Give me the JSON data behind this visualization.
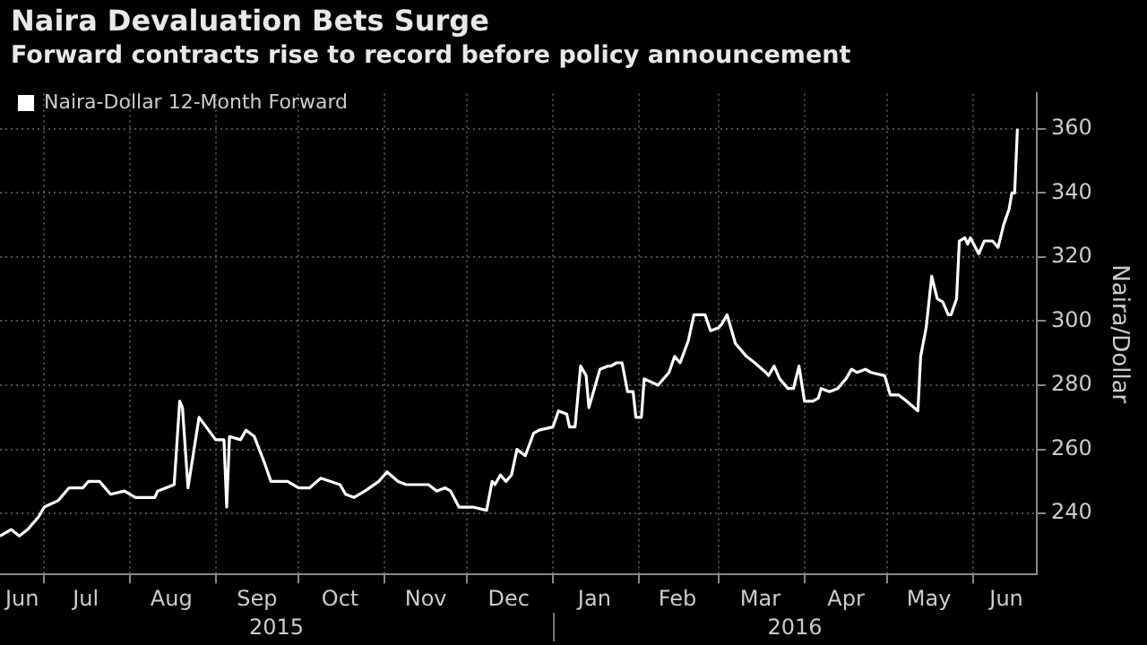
{
  "chart_data": {
    "type": "line",
    "title": "Naira Devaluation Bets Surge",
    "subtitle": "Forward contracts rise to record before policy announcement",
    "ylabel": "Naira/Dollar",
    "annotations": [
      "2015",
      "2016"
    ],
    "x": [
      "2015-06-15",
      "2015-06-19",
      "2015-06-22",
      "2015-06-25",
      "2015-06-29",
      "2015-07-01",
      "2015-07-06",
      "2015-07-10",
      "2015-07-15",
      "2015-07-17",
      "2015-07-21",
      "2015-07-25",
      "2015-07-30",
      "2015-08-03",
      "2015-08-10",
      "2015-08-11",
      "2015-08-17",
      "2015-08-19",
      "2015-08-20",
      "2015-08-22",
      "2015-08-26",
      "2015-09-01",
      "2015-09-04",
      "2015-09-05",
      "2015-09-06",
      "2015-09-10",
      "2015-09-12",
      "2015-09-15",
      "2015-09-19",
      "2015-09-21",
      "2015-09-27",
      "2015-10-01",
      "2015-10-05",
      "2015-10-09",
      "2015-10-16",
      "2015-10-18",
      "2015-10-21",
      "2015-10-25",
      "2015-10-30",
      "2015-11-02",
      "2015-11-06",
      "2015-11-09",
      "2015-11-17",
      "2015-11-20",
      "2015-11-23",
      "2015-11-25",
      "2015-11-28",
      "2015-12-03",
      "2015-12-08",
      "2015-12-10",
      "2015-12-11",
      "2015-12-13",
      "2015-12-15",
      "2015-12-17",
      "2015-12-19",
      "2015-12-22",
      "2015-12-25",
      "2015-12-27",
      "2016-01-01",
      "2016-01-03",
      "2016-01-06",
      "2016-01-07",
      "2016-01-09",
      "2016-01-11",
      "2016-01-13",
      "2016-01-14",
      "2016-01-18",
      "2016-01-21",
      "2016-01-22",
      "2016-01-24",
      "2016-01-26",
      "2016-01-28",
      "2016-01-30",
      "2016-01-31",
      "2016-02-02",
      "2016-02-03",
      "2016-02-08",
      "2016-02-12",
      "2016-02-14",
      "2016-02-16",
      "2016-02-19",
      "2016-02-21",
      "2016-02-25",
      "2016-02-27",
      "2016-03-01",
      "2016-03-02",
      "2016-03-04",
      "2016-03-07",
      "2016-03-11",
      "2016-03-14",
      "2016-03-18",
      "2016-03-19",
      "2016-03-21",
      "2016-03-23",
      "2016-03-26",
      "2016-03-28",
      "2016-03-30",
      "2016-04-01",
      "2016-04-04",
      "2016-04-06",
      "2016-04-07",
      "2016-04-10",
      "2016-04-13",
      "2016-04-16",
      "2016-04-18",
      "2016-04-20",
      "2016-04-23",
      "2016-04-25",
      "2016-04-30",
      "2016-05-02",
      "2016-05-05",
      "2016-05-08",
      "2016-05-12",
      "2016-05-13",
      "2016-05-15",
      "2016-05-17",
      "2016-05-19",
      "2016-05-21",
      "2016-05-23",
      "2016-05-24",
      "2016-05-26",
      "2016-05-27",
      "2016-05-29",
      "2016-05-30",
      "2016-05-31",
      "2016-06-03",
      "2016-06-05",
      "2016-06-08",
      "2016-06-10",
      "2016-06-12",
      "2016-06-14",
      "2016-06-15",
      "2016-06-16",
      "2016-06-17"
    ],
    "series": [
      {
        "name": "Naira-Dollar 12-Month Forward",
        "color": "#ffffff",
        "values": [
          233,
          235,
          233,
          235,
          239,
          242,
          244,
          248,
          248,
          250,
          250,
          246,
          247,
          245,
          245,
          247,
          249,
          275,
          273,
          248,
          270,
          263,
          263,
          242,
          264,
          263,
          266,
          264,
          255,
          250,
          250,
          248,
          248,
          251,
          249,
          246,
          245,
          247,
          250,
          253,
          250,
          249,
          249,
          247,
          248,
          247,
          242,
          242,
          241,
          250,
          249,
          252,
          250,
          252,
          260,
          258,
          265,
          266,
          267,
          272,
          271,
          267,
          267,
          286,
          283,
          273,
          285,
          286,
          286,
          287,
          287,
          278,
          278,
          270,
          270,
          282,
          280,
          284,
          289,
          287,
          294,
          302,
          302,
          297,
          298,
          299,
          302,
          293,
          289,
          287,
          284,
          283,
          286,
          282,
          279,
          279,
          286,
          275,
          275,
          276,
          279,
          278,
          279,
          282,
          285,
          284,
          285,
          284,
          283,
          277,
          277,
          275,
          272,
          289,
          298,
          314,
          307,
          306,
          302,
          302,
          307,
          325,
          326,
          324,
          326,
          321,
          325,
          325,
          323,
          330,
          335,
          340,
          340,
          360
        ]
      }
    ],
    "xlim": [
      "2015-06-15",
      "2016-06-24"
    ],
    "xticks": [
      {
        "value": "2015-06-23",
        "label": "Jun"
      },
      {
        "value": "2015-07-01",
        "label": null
      },
      {
        "value": "2015-07-16",
        "label": "Jul"
      },
      {
        "value": "2015-08-01",
        "label": null
      },
      {
        "value": "2015-08-16",
        "label": "Aug"
      },
      {
        "value": "2015-09-01",
        "label": null
      },
      {
        "value": "2015-09-16",
        "label": "Sep"
      },
      {
        "value": "2015-10-01",
        "label": null
      },
      {
        "value": "2015-10-16",
        "label": "Oct"
      },
      {
        "value": "2015-11-01",
        "label": null
      },
      {
        "value": "2015-11-16",
        "label": "Nov"
      },
      {
        "value": "2015-12-01",
        "label": null
      },
      {
        "value": "2015-12-16",
        "label": "Dec"
      },
      {
        "value": "2016-01-01",
        "label": null
      },
      {
        "value": "2016-01-16",
        "label": "Jan"
      },
      {
        "value": "2016-02-01",
        "label": null
      },
      {
        "value": "2016-02-15",
        "label": "Feb"
      },
      {
        "value": "2016-03-01",
        "label": null
      },
      {
        "value": "2016-03-16",
        "label": "Mar"
      },
      {
        "value": "2016-04-01",
        "label": null
      },
      {
        "value": "2016-04-16",
        "label": "Apr"
      },
      {
        "value": "2016-05-01",
        "label": null
      },
      {
        "value": "2016-05-16",
        "label": "May"
      },
      {
        "value": "2016-06-01",
        "label": null
      },
      {
        "value": "2016-06-13",
        "label": "Jun"
      }
    ],
    "ylim": [
      221,
      371
    ],
    "yticks": [
      240,
      260,
      280,
      300,
      320,
      340,
      360
    ],
    "grid": true,
    "legend": "top left",
    "marker": "none",
    "line_style": "solid"
  }
}
